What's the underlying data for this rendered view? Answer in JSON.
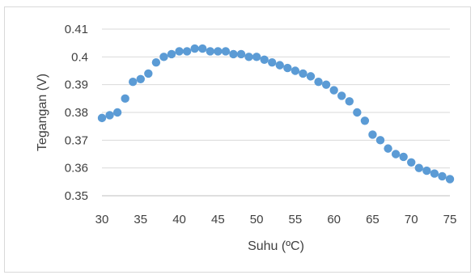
{
  "chart_data": {
    "type": "scatter",
    "title": "",
    "xlabel": "Suhu (ºC)",
    "ylabel": "Tegangan (V)",
    "xlim": [
      30,
      75
    ],
    "ylim": [
      0.35,
      0.41
    ],
    "xticks": [
      30,
      35,
      40,
      45,
      50,
      55,
      60,
      65,
      70,
      75
    ],
    "xtick_labels": [
      "30",
      "35",
      "40",
      "45",
      "50",
      "55",
      "60",
      "65",
      "70",
      "75"
    ],
    "yticks": [
      0.35,
      0.36,
      0.37,
      0.38,
      0.39,
      0.4,
      0.41
    ],
    "ytick_labels": [
      "0.35",
      "0.36",
      "0.37",
      "0.38",
      "0.39",
      "0.4",
      "0.41"
    ],
    "grid": true,
    "legend": "none",
    "marker_color": "#5b9bd5",
    "x": [
      30,
      31,
      32,
      33,
      34,
      35,
      36,
      37,
      38,
      39,
      40,
      41,
      42,
      43,
      44,
      45,
      46,
      47,
      48,
      49,
      50,
      51,
      52,
      53,
      54,
      55,
      56,
      57,
      58,
      59,
      60,
      61,
      62,
      63,
      64,
      65,
      66,
      67,
      68,
      69,
      70,
      71,
      72,
      73,
      74,
      75
    ],
    "y": [
      0.378,
      0.379,
      0.38,
      0.385,
      0.391,
      0.392,
      0.394,
      0.398,
      0.4,
      0.401,
      0.402,
      0.402,
      0.403,
      0.403,
      0.402,
      0.402,
      0.402,
      0.401,
      0.401,
      0.4,
      0.4,
      0.399,
      0.398,
      0.397,
      0.396,
      0.395,
      0.394,
      0.393,
      0.391,
      0.39,
      0.388,
      0.386,
      0.384,
      0.38,
      0.377,
      0.372,
      0.37,
      0.367,
      0.365,
      0.364,
      0.362,
      0.36,
      0.359,
      0.358,
      0.357,
      0.356
    ]
  }
}
